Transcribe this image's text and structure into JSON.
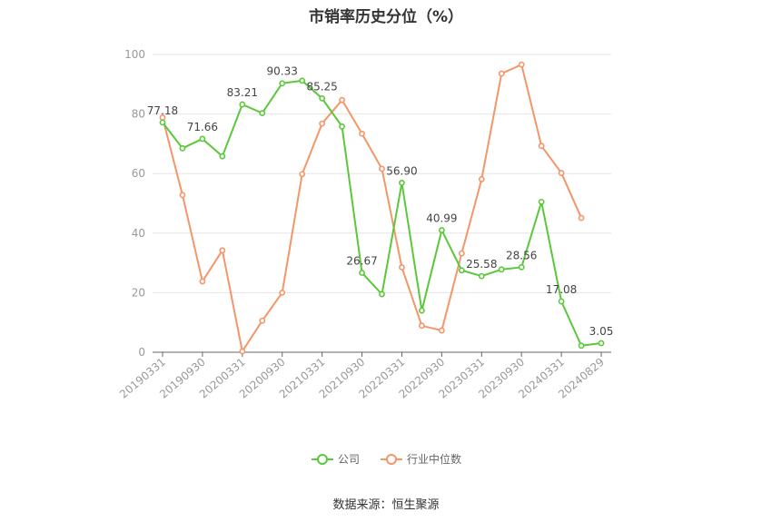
{
  "title": "市销率历史分位（%）",
  "source": "数据来源：恒生聚源",
  "colors": {
    "company": "#5ac83a",
    "industry": "#f4956a",
    "grid": "#e6e6e6",
    "axis": "#666666"
  },
  "chart_data": {
    "type": "line",
    "title": "市销率历史分位（%）",
    "ylim": [
      0,
      100
    ],
    "yticks": [
      0,
      20,
      40,
      60,
      80,
      100
    ],
    "grid": true,
    "legend_position": "bottom",
    "x": [
      "20190331",
      "20190630",
      "20190930",
      "20191231",
      "20200331",
      "20200630",
      "20200930",
      "20201231",
      "20210331",
      "20210630",
      "20210930",
      "20211231",
      "20220331",
      "20220630",
      "20220930",
      "20221231",
      "20230331",
      "20230630",
      "20230930",
      "20231231",
      "20240331",
      "20240630",
      "20240829"
    ],
    "xtick_labels": [
      "20190331",
      "20190930",
      "20200331",
      "20200930",
      "20210331",
      "20210930",
      "20220331",
      "20220930",
      "20230331",
      "20230930",
      "20240331",
      "20240829"
    ],
    "series": [
      {
        "name": "公司",
        "values": [
          77.18,
          68.5,
          71.66,
          65.8,
          83.21,
          80.3,
          90.33,
          91.2,
          85.25,
          75.8,
          26.67,
          19.5,
          56.9,
          14.0,
          40.99,
          27.5,
          25.58,
          27.8,
          28.56,
          50.5,
          17.08,
          2.2,
          3.05
        ],
        "labels": [
          "77.18",
          null,
          "71.66",
          null,
          "83.21",
          null,
          "90.33",
          null,
          "85.25",
          null,
          "26.67",
          null,
          "56.90",
          null,
          "40.99",
          null,
          "25.58",
          null,
          "28.56",
          null,
          "17.08",
          null,
          "3.05"
        ]
      },
      {
        "name": "行业中位数",
        "values": [
          78.8,
          52.8,
          23.8,
          34.2,
          0.3,
          10.6,
          20.0,
          59.8,
          76.8,
          84.7,
          73.4,
          61.6,
          28.5,
          8.9,
          7.3,
          33.2,
          58.1,
          93.6,
          96.6,
          69.3,
          60.2,
          45.1,
          null
        ]
      }
    ]
  }
}
